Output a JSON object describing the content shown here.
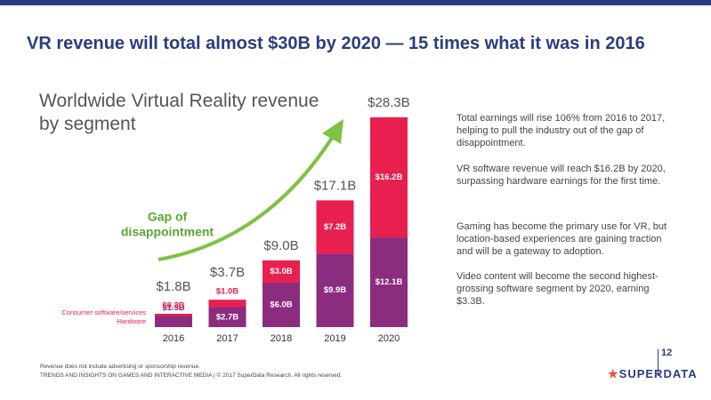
{
  "headline": "VR revenue will total almost $30B by 2020 — 15 times what it was in 2016",
  "paragraphs": [
    "Total earnings will rise 106% from 2016 to 2017, helping to pull the industry out of the gap of disappointment.",
    "VR software revenue will reach $16.2B by 2020, surpassing hardware earnings for the first time.",
    "Gaming has become the primary use for VR, but location-based experiences are gaining traction and will be a gateway to adoption.",
    "Video content will become the second highest-grossing software segment by 2020, earning $3.3B."
  ],
  "footnotes": [
    "Revenue does not include advertising or sponsorship revenue.",
    "TRENDS AND INSIGHTS ON GAMES AND INTERACTIVE MEDIA  |  © 2017 SuperData Research. All rights reserved."
  ],
  "page_number": "12",
  "logo": "SUPERDATA",
  "chart_data": {
    "type": "bar",
    "stacked": true,
    "title": "Worldwide Virtual Reality revenue by segment",
    "annotation": [
      "Gap of",
      "disappointment"
    ],
    "categories": [
      "2016",
      "2017",
      "2018",
      "2019",
      "2020"
    ],
    "series": [
      {
        "name": "Hardware",
        "color": "#8b2c7f",
        "values": [
          1.5,
          2.7,
          6.0,
          9.9,
          12.1
        ],
        "value_labels": [
          "$1.5B",
          "$2.7B",
          "$6.0B",
          "$9.9B",
          "$12.1B"
        ]
      },
      {
        "name": "Consumer software/services",
        "color": "#e8204f",
        "values": [
          0.3,
          1.0,
          3.0,
          7.2,
          16.2
        ],
        "value_labels": [
          "$0.3B",
          "$1.0B",
          "$3.0B",
          "$7.2B",
          "$16.2B"
        ]
      }
    ],
    "totals": {
      "values": [
        1.8,
        3.7,
        9.0,
        17.1,
        28.3
      ],
      "value_labels": [
        "$1.8B",
        "$3.7B",
        "$9.0B",
        "$17.1B",
        "$28.3B"
      ]
    }
  }
}
